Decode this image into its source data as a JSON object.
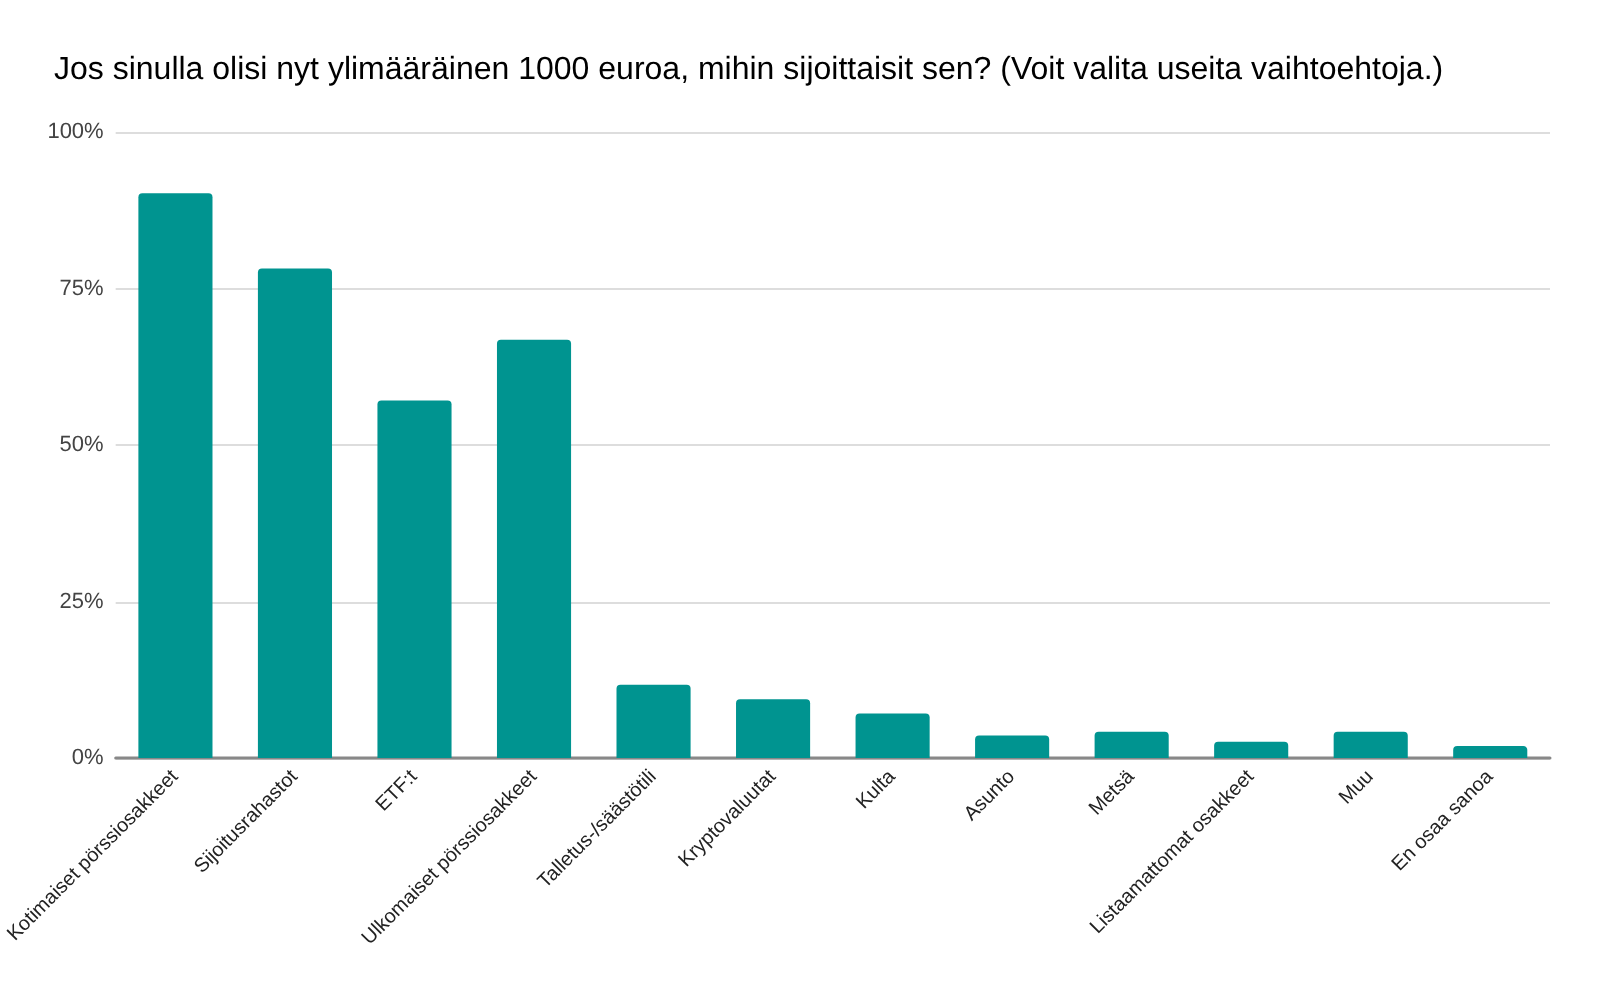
{
  "chart_data": {
    "type": "bar",
    "title": "Jos sinulla olisi nyt ylimääräinen 1000 euroa, mihin sijoittaisit sen? (Voit valita useita vaihtoehtoja.)",
    "categories": [
      "Kotimaiset pörssiosakkeet",
      "Sijoitusrahastot",
      "ETF:t",
      "Ulkomaiset pörssiosakkeet",
      "Talletus-/säästötili",
      "Kryptovaluutat",
      "Kulta",
      "Asunto",
      "Metsä",
      "Listaamattomat osakkeet",
      "Muu",
      "En osaa sanoa"
    ],
    "values": [
      90.2,
      78.2,
      57.1,
      66.8,
      11.7,
      9.4,
      7.1,
      3.6,
      4.2,
      2.6,
      4.2,
      1.9
    ],
    "color": "#009490",
    "ylim": [
      0,
      100
    ],
    "yticks": [
      {
        "value": 0,
        "label": "0%"
      },
      {
        "value": 25,
        "label": "25%"
      },
      {
        "value": 50,
        "label": "50%"
      },
      {
        "value": 75,
        "label": "75%"
      },
      {
        "value": 100,
        "label": "100%"
      }
    ],
    "grid": "y"
  }
}
